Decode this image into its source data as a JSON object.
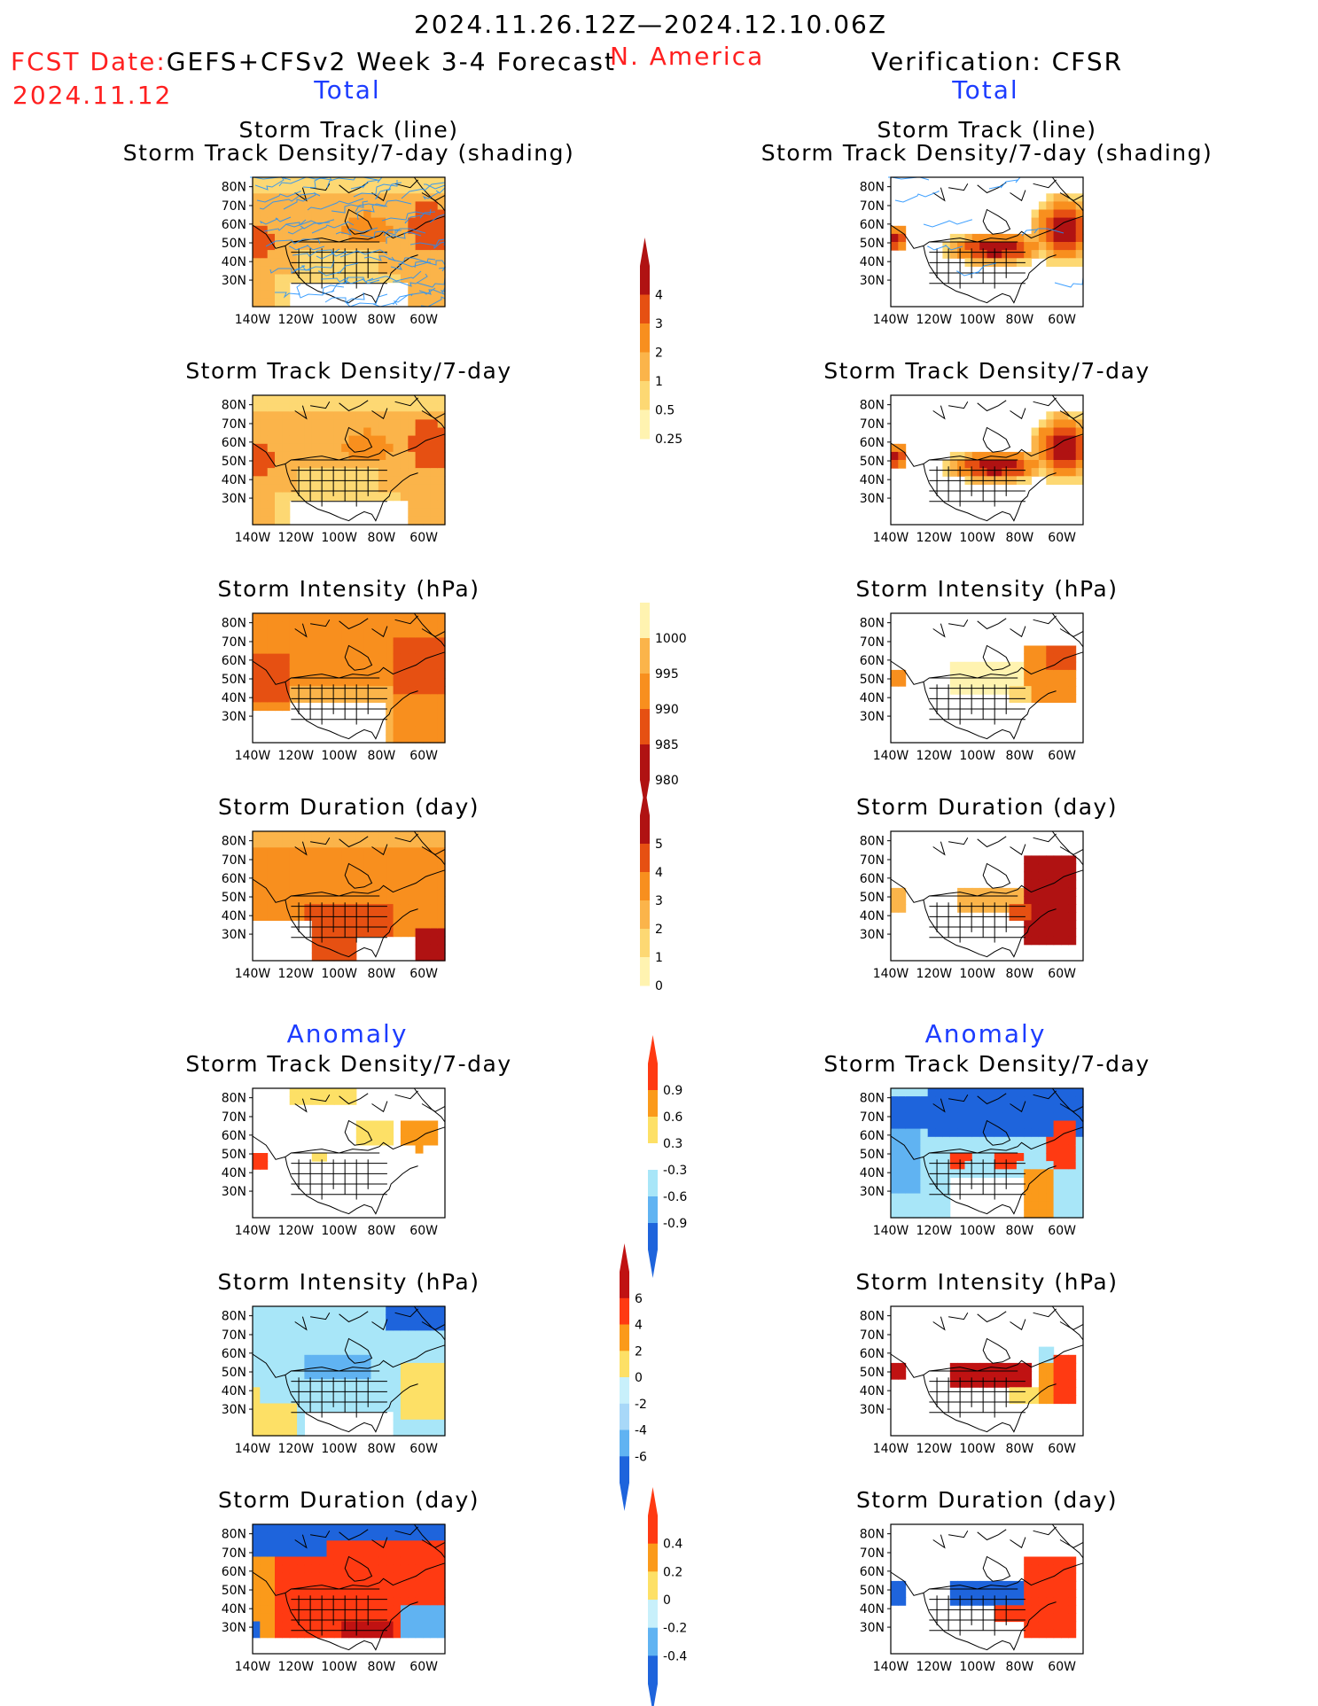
{
  "header": {
    "date_range": "2024.11.26.12Z—2024.12.10.06Z",
    "fcst_label": "FCST Date:",
    "fcst_model": "GEFS+CFSv2 Week 3-4 Forecast",
    "fcst_date": "2024.11.12",
    "region": "N. America",
    "verification": "Verification: CFSR"
  },
  "section_labels": {
    "total": "Total",
    "anomaly": "Anomaly"
  },
  "panel_titles": {
    "track": "Storm Track (line)\nStorm Track Density/7-day (shading)",
    "density": "Storm Track Density/7-day",
    "intensity": "Storm Intensity (hPa)",
    "duration": "Storm Duration (day)"
  },
  "lat_labels": [
    "80N",
    "70N",
    "60N",
    "50N",
    "40N",
    "30N"
  ],
  "lon_labels": [
    "140W",
    "120W",
    "100W",
    "80W",
    "60W"
  ],
  "colorbars": {
    "density_total": {
      "values": [
        "0.25",
        "0.5",
        "1",
        "2",
        "3",
        "4"
      ],
      "colors": [
        "#fff3b0",
        "#fdd873",
        "#fbb44a",
        "#f88f1e",
        "#e65012",
        "#b01212"
      ]
    },
    "intensity_total": {
      "values": [
        "1000",
        "995",
        "990",
        "985",
        "980"
      ],
      "colors": [
        "#fff3b0",
        "#fbb44a",
        "#f88f1e",
        "#e65012",
        "#b01212"
      ]
    },
    "duration_total": {
      "values": [
        "0",
        "1",
        "2",
        "3",
        "4",
        "5"
      ],
      "colors": [
        "#fff3b0",
        "#fdd873",
        "#fbb44a",
        "#f88f1e",
        "#e65012",
        "#b01212"
      ]
    },
    "density_anom": {
      "values": [
        "0.9",
        "0.6",
        "0.3",
        "-0.3",
        "-0.6",
        "-0.9"
      ],
      "colors": [
        "#ff3a12",
        "#fb9a1a",
        "#fde066",
        "#ffffff",
        "#a8e6f8",
        "#60b3f2",
        "#1e64dc"
      ]
    },
    "intensity_anom": {
      "values": [
        "6",
        "4",
        "2",
        "0",
        "-2",
        "-4",
        "-6"
      ],
      "colors": [
        "#c01212",
        "#ff3a12",
        "#fb9a1a",
        "#fde066",
        "#c8f0fb",
        "#a8d8f8",
        "#60b3f2",
        "#1e64dc"
      ]
    },
    "duration_anom": {
      "values": [
        "0.4",
        "0.2",
        "0",
        "-0.2",
        "-0.4"
      ],
      "colors": [
        "#ff3a12",
        "#fb9a1a",
        "#fde066",
        "#c8f0fb",
        "#60b3f2",
        "#1e64dc"
      ]
    }
  },
  "colors": {
    "title_red": "#ff2020",
    "section_blue": "#1c3cff",
    "track_line": "#1e90ff"
  }
}
